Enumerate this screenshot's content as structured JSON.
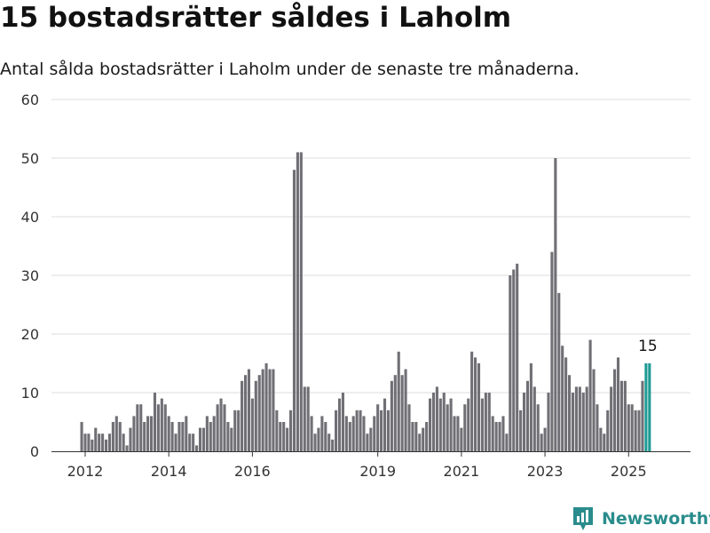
{
  "title": "15 bostadsrätter såldes i Laholm",
  "subtitle": "Antal sålda bostadsrätter i Laholm under de senaste tre månaderna.",
  "brand": {
    "name": "Newsworthy",
    "color": "#2a8c8c"
  },
  "colors": {
    "bar": "#706f75",
    "highlight": "#1f9a93",
    "grid": "#dddddd",
    "axis": "#333333"
  },
  "chart_data": {
    "type": "bar",
    "title": "15 bostadsrätter såldes i Laholm",
    "subtitle": "Antal sålda bostadsrätter i Laholm under de senaste tre månaderna.",
    "xlabel": "",
    "ylabel": "",
    "ylim": [
      0,
      60
    ],
    "yticks": [
      "0",
      "10",
      "20",
      "30",
      "40",
      "50",
      "60"
    ],
    "xticks": [
      {
        "label": "2012",
        "index": 1
      },
      {
        "label": "2014",
        "index": 25
      },
      {
        "label": "2016",
        "index": 49
      },
      {
        "label": "2019",
        "index": 85
      },
      {
        "label": "2021",
        "index": 109
      },
      {
        "label": "2023",
        "index": 133
      },
      {
        "label": "2025",
        "index": 157
      }
    ],
    "grid": true,
    "legend": "none",
    "highlight_last": 2,
    "last_value_label": "15",
    "values": [
      5,
      3,
      3,
      2,
      4,
      3,
      3,
      2,
      3,
      5,
      6,
      5,
      3,
      1,
      4,
      6,
      8,
      8,
      5,
      6,
      6,
      10,
      8,
      9,
      8,
      6,
      5,
      3,
      5,
      5,
      6,
      3,
      3,
      1,
      4,
      4,
      6,
      5,
      6,
      8,
      9,
      8,
      5,
      4,
      7,
      7,
      12,
      13,
      14,
      9,
      12,
      13,
      14,
      15,
      14,
      14,
      7,
      5,
      5,
      4,
      7,
      48,
      51,
      51,
      11,
      11,
      6,
      3,
      4,
      6,
      5,
      3,
      2,
      7,
      9,
      10,
      6,
      5,
      6,
      7,
      7,
      6,
      3,
      4,
      6,
      8,
      7,
      9,
      7,
      12,
      13,
      17,
      13,
      14,
      8,
      5,
      5,
      3,
      4,
      5,
      9,
      10,
      11,
      9,
      10,
      8,
      9,
      6,
      6,
      4,
      8,
      9,
      17,
      16,
      15,
      9,
      10,
      10,
      6,
      5,
      5,
      6,
      3,
      30,
      31,
      32,
      7,
      10,
      12,
      15,
      11,
      8,
      3,
      4,
      10,
      34,
      50,
      27,
      18,
      16,
      13,
      10,
      11,
      11,
      10,
      11,
      19,
      14,
      8,
      4,
      3,
      7,
      11,
      14,
      16,
      12,
      12,
      8,
      8,
      7,
      7,
      12,
      15,
      15
    ]
  }
}
